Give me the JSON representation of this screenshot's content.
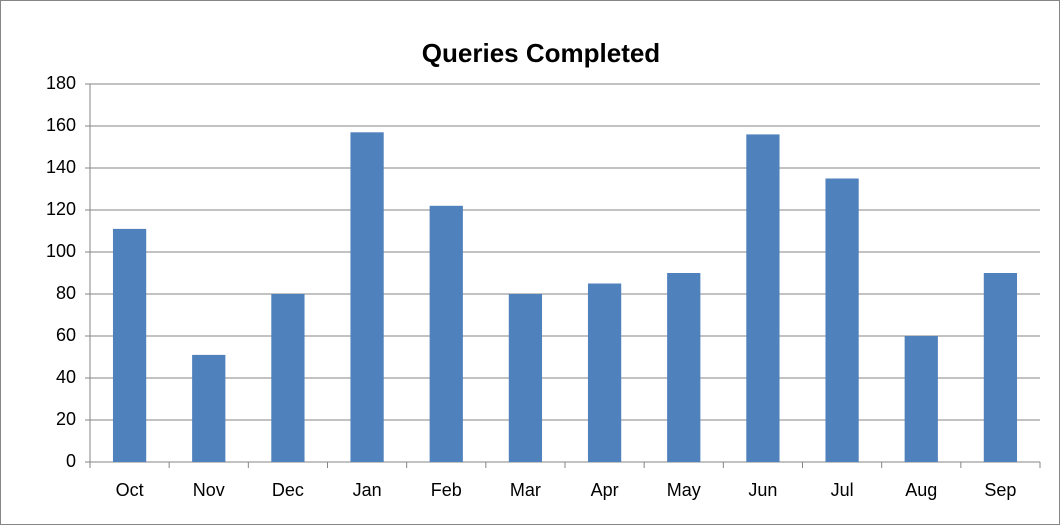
{
  "chart_data": {
    "type": "bar",
    "title": "Queries Completed",
    "categories": [
      "Oct",
      "Nov",
      "Dec",
      "Jan",
      "Feb",
      "Mar",
      "Apr",
      "May",
      "Jun",
      "Jul",
      "Aug",
      "Sep"
    ],
    "values": [
      111,
      51,
      80,
      157,
      122,
      80,
      85,
      90,
      156,
      135,
      60,
      90
    ],
    "color": "#4f81bd",
    "ylim": [
      0,
      180
    ],
    "yticks": [
      0,
      20,
      40,
      60,
      80,
      100,
      120,
      140,
      160,
      180
    ],
    "grid": true
  }
}
